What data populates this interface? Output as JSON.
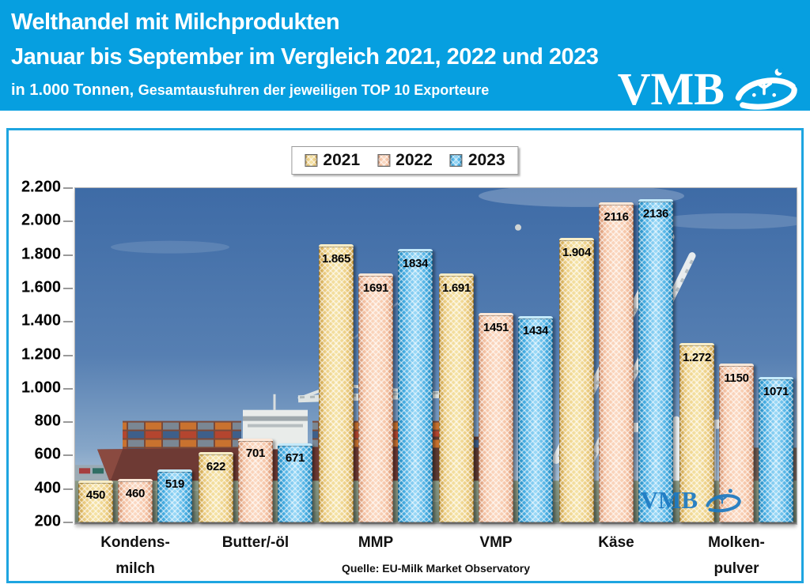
{
  "colors": {
    "accent_blue": "#069FE0",
    "series_2021": "#EACB74",
    "series_2022": "#F4BFA4",
    "series_2023": "#45ACE2",
    "watermark_blue": "#1B79C2"
  },
  "header": {
    "title_line1": "Welthandel mit Milchprodukten",
    "title_line2": "Januar bis September im Vergleich 2021, 2022 und 2023",
    "subtitle_main": "in 1.000 Tonnen,",
    "subtitle_rest": "Gesamtausfuhren der jeweiligen TOP 10 Exporteure",
    "logo_text": "VMB"
  },
  "chart_data": {
    "type": "bar",
    "categories": [
      "Kondens-\nmilch",
      "Butter/-öl",
      "MMP",
      "VMP",
      "Käse",
      "Molken-\npulver"
    ],
    "series": [
      {
        "name": "2021",
        "color": "#EACB74",
        "values": [
          450,
          622,
          1865,
          1691,
          1904,
          1272
        ],
        "labels": [
          "450",
          "622",
          "1.865",
          "1.691",
          "1.904",
          "1.272"
        ]
      },
      {
        "name": "2022",
        "color": "#F4BFA4",
        "values": [
          460,
          701,
          1691,
          1451,
          2116,
          1150
        ],
        "labels": [
          "460",
          "701",
          "1691",
          "1451",
          "2116",
          "1150"
        ]
      },
      {
        "name": "2023",
        "color": "#45ACE2",
        "values": [
          519,
          671,
          1834,
          1434,
          2136,
          1071
        ],
        "labels": [
          "519",
          "671",
          "1834",
          "1434",
          "2136",
          "1071"
        ]
      }
    ],
    "ylim": [
      200,
      2200
    ],
    "ytick_step": 200,
    "ytick_labels_top_down": [
      "2.200",
      "2.000",
      "1.800",
      "1.600",
      "1.400",
      "1.200",
      "1.000",
      "800",
      "600",
      "400",
      "200"
    ],
    "legend_position": "top-center",
    "grid": false,
    "source_note": "Quelle: EU-Milk Market Observatory",
    "watermark": "VMB"
  }
}
